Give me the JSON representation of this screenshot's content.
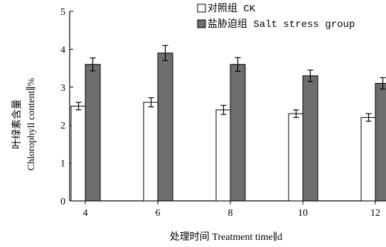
{
  "chart_data": {
    "type": "bar",
    "categories": [
      "4",
      "6",
      "8",
      "10",
      "12"
    ],
    "series": [
      {
        "name": "对照组 CK",
        "values": [
          2.5,
          2.6,
          2.4,
          2.3,
          2.2
        ],
        "errors": [
          0.1,
          0.12,
          0.12,
          0.1,
          0.1
        ],
        "color": "#ffffff"
      },
      {
        "name": "盐胁迫组 Salt stress group",
        "values": [
          3.6,
          3.9,
          3.6,
          3.3,
          3.1
        ],
        "errors": [
          0.17,
          0.2,
          0.18,
          0.15,
          0.15
        ],
        "color": "#6e6e6e"
      }
    ],
    "xlabel": "处理时间 Treatment time∥d",
    "ylabel_cn": "叶绿素含量",
    "ylabel_en": "Chlorophyll content∥%",
    "ylim": [
      0,
      5
    ],
    "yticks": [
      0,
      1,
      2,
      3,
      4,
      5
    ],
    "legend_position": "top-right",
    "grid": false
  }
}
